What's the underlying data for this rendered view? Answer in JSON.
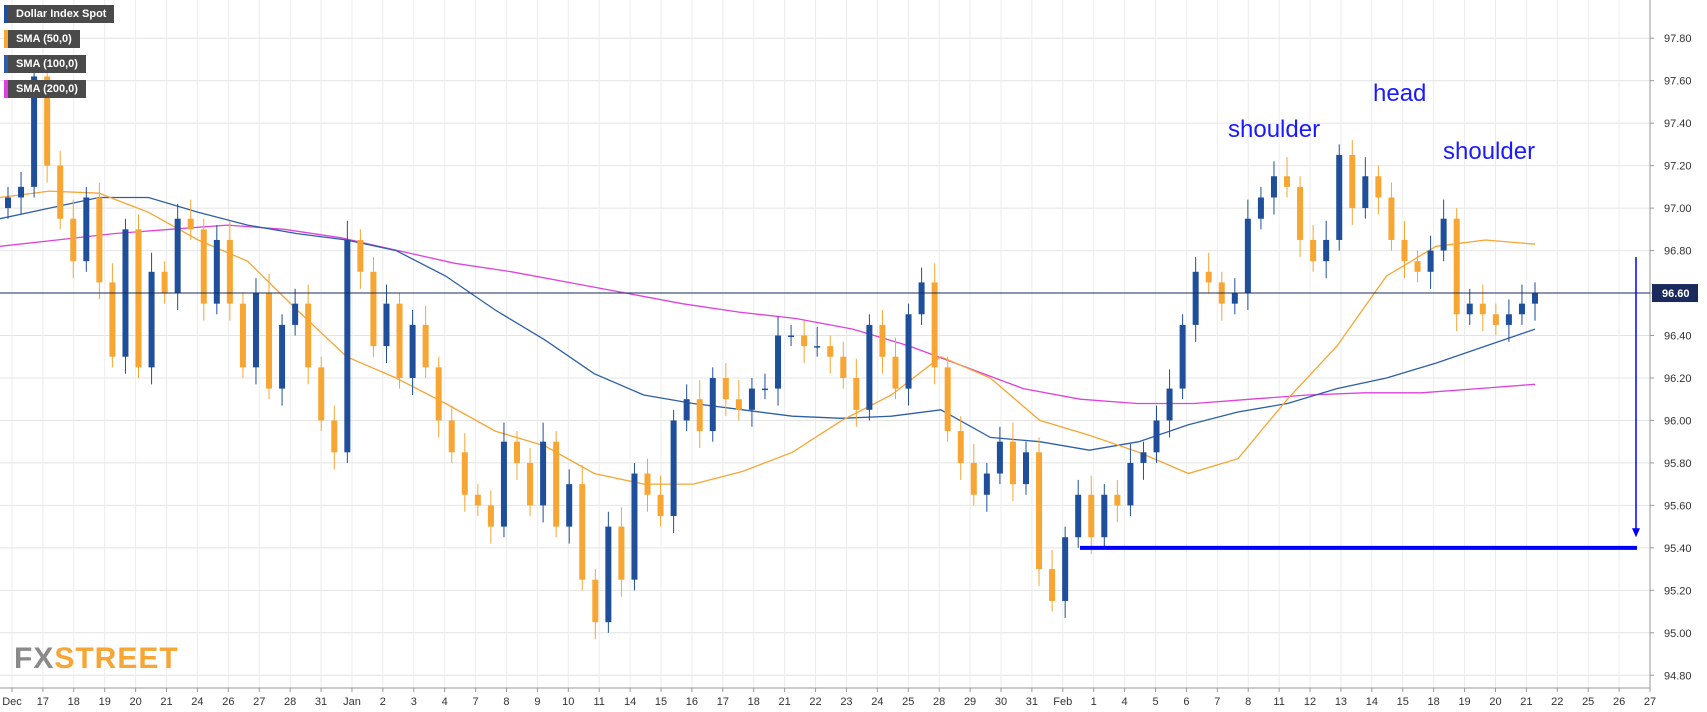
{
  "legend": [
    {
      "label": "Dollar Index Spot",
      "color": "#1f4f9a"
    },
    {
      "label": "SMA (50,0)",
      "color": "#f7a533"
    },
    {
      "label": "SMA (100,0)",
      "color": "#2d5fa8"
    },
    {
      "label": "SMA (200,0)",
      "color": "#e040e0"
    }
  ],
  "watermark": {
    "fx": "FX",
    "street": "STREET"
  },
  "annotations": {
    "left_shoulder": "shoulder",
    "head": "head",
    "right_shoulder": "shoulder"
  },
  "price_label": "96.60",
  "chart_data": {
    "type": "candlestick",
    "title": "Dollar Index Spot",
    "ylim": [
      94.74,
      97.98
    ],
    "y_ticks": [
      "97.80",
      "97.60",
      "97.40",
      "97.20",
      "97.00",
      "96.80",
      "96.60",
      "96.40",
      "96.20",
      "96.00",
      "95.80",
      "95.60",
      "95.40",
      "95.20",
      "95.00",
      "94.80"
    ],
    "x_ticks": [
      "Dec",
      "17",
      "18",
      "19",
      "20",
      "21",
      "24",
      "26",
      "27",
      "28",
      "31",
      "Jan",
      "2",
      "3",
      "4",
      "7",
      "8",
      "9",
      "10",
      "11",
      "14",
      "15",
      "16",
      "17",
      "18",
      "21",
      "22",
      "23",
      "24",
      "25",
      "28",
      "29",
      "30",
      "31",
      "Feb",
      "1",
      "4",
      "5",
      "6",
      "7",
      "8",
      "11",
      "12",
      "13",
      "14",
      "15",
      "18",
      "19",
      "20",
      "21",
      "22",
      "25",
      "26",
      "27"
    ],
    "current_price": 96.6,
    "support_level": 95.4,
    "target_arrow": {
      "from": 96.77,
      "to": 95.45
    },
    "up_color": "#1f4f9a",
    "down_color": "#f7a533",
    "closes": [
      97.05,
      97.1,
      97.62,
      97.2,
      96.95,
      96.75,
      97.05,
      96.65,
      96.3,
      96.9,
      96.25,
      96.7,
      96.6,
      96.95,
      96.9,
      96.55,
      96.85,
      96.55,
      96.25,
      96.6,
      96.15,
      96.45,
      96.55,
      96.25,
      96.0,
      95.85,
      96.85,
      96.7,
      96.35,
      96.55,
      96.2,
      96.45,
      96.25,
      96.0,
      95.85,
      95.65,
      95.6,
      95.5,
      95.9,
      95.8,
      95.6,
      95.9,
      95.5,
      95.7,
      95.25,
      95.05,
      95.5,
      95.25,
      95.75,
      95.65,
      95.55,
      96.0,
      96.1,
      95.95,
      96.2,
      96.1,
      96.05,
      96.15,
      96.15,
      96.4,
      96.4,
      96.35,
      96.35,
      96.3,
      96.2,
      96.05,
      96.45,
      96.3,
      96.15,
      96.5,
      96.65,
      96.25,
      95.95,
      95.8,
      95.65,
      95.75,
      95.9,
      95.7,
      95.85,
      95.3,
      95.15,
      95.45,
      95.65,
      95.45,
      95.65,
      95.6,
      95.8,
      95.85,
      96.0,
      96.15,
      96.45,
      96.7,
      96.65,
      96.55,
      96.6,
      96.95,
      97.05,
      97.15,
      97.1,
      96.85,
      96.75,
      96.85,
      97.25,
      97.0,
      97.15,
      97.05,
      96.85,
      96.75,
      96.7,
      96.8,
      96.95,
      96.5,
      96.55,
      96.5,
      96.45,
      96.5,
      96.55,
      96.6
    ],
    "sma50": [
      97.05,
      97.08,
      97.07,
      96.98,
      96.85,
      96.75,
      96.52,
      96.3,
      96.2,
      96.08,
      95.95,
      95.88,
      95.75,
      95.7,
      95.7,
      95.76,
      95.85,
      96.0,
      96.12,
      96.3,
      96.2,
      96.0,
      95.93,
      95.85,
      95.75,
      95.82,
      96.1,
      96.35,
      96.68,
      96.82,
      96.85,
      96.83
    ],
    "sma100": [
      96.95,
      97.0,
      97.05,
      97.05,
      96.98,
      96.92,
      96.88,
      96.85,
      96.8,
      96.68,
      96.52,
      96.38,
      96.22,
      96.12,
      96.08,
      96.05,
      96.02,
      96.01,
      96.02,
      96.05,
      95.92,
      95.9,
      95.86,
      95.9,
      95.98,
      96.04,
      96.08,
      96.15,
      96.2,
      96.27,
      96.35,
      96.43
    ],
    "sma200": [
      96.82,
      96.85,
      96.88,
      96.9,
      96.92,
      96.9,
      96.86,
      96.8,
      96.74,
      96.7,
      96.65,
      96.6,
      96.55,
      96.51,
      96.48,
      96.43,
      96.35,
      96.25,
      96.15,
      96.1,
      96.08,
      96.08,
      96.1,
      96.12,
      96.13,
      96.13,
      96.15,
      96.17
    ]
  }
}
